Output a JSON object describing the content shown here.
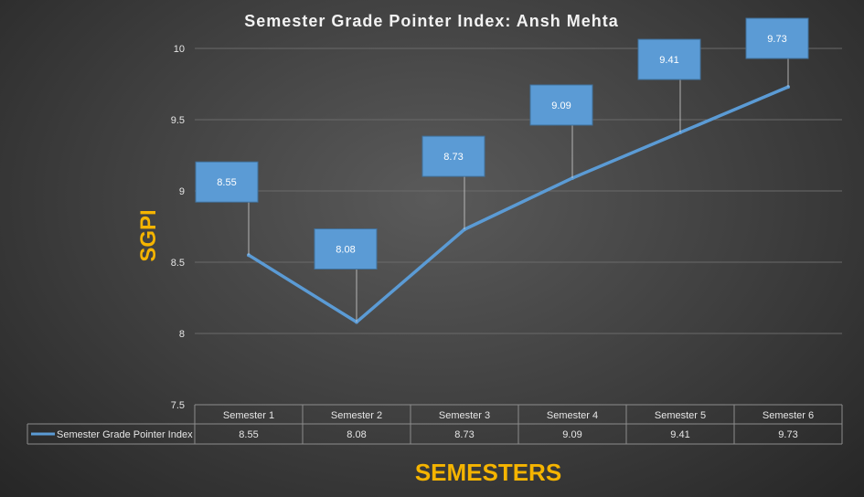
{
  "chart_data": {
    "type": "line",
    "title": "Semester Grade Pointer Index: Ansh Mehta",
    "xlabel": "SEMESTERS",
    "ylabel": "SGPI",
    "categories": [
      "Semester 1",
      "Semester 2",
      "Semester 3",
      "Semester 4",
      "Semester 5",
      "Semester 6"
    ],
    "series": [
      {
        "name": "Semester Grade Pointer Index",
        "values": [
          8.55,
          8.08,
          8.73,
          9.09,
          9.41,
          9.73
        ]
      }
    ],
    "ylim": [
      7.5,
      10
    ],
    "yticks": [
      "10",
      "9.5",
      "9",
      "8.5",
      "8",
      "7.5"
    ],
    "grid": true,
    "legend": "data-table",
    "data_labels": "callouts",
    "colors": {
      "series": "#5b9bd5",
      "axis_title": "#f5b400"
    }
  }
}
